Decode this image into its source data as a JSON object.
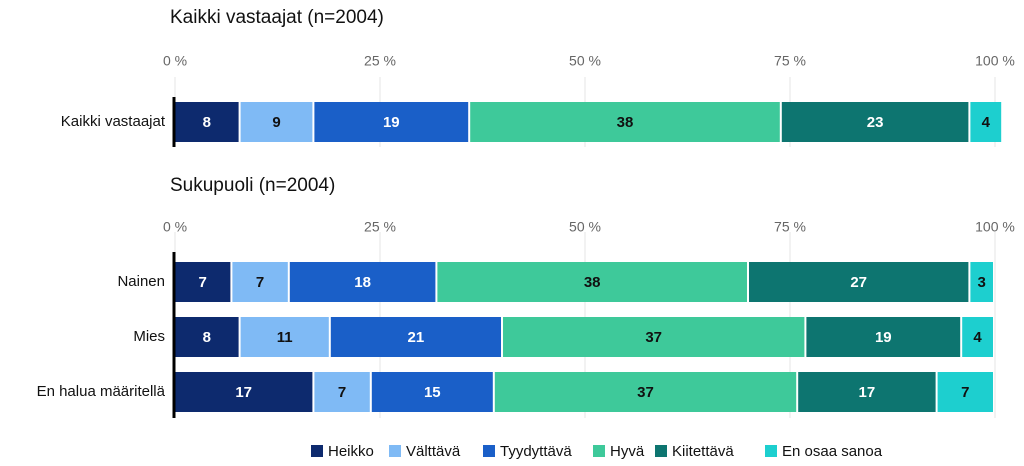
{
  "chart_data": [
    {
      "type": "bar",
      "title": "Kaikki vastaajat (n=2004)",
      "categories": [
        "Kaikki vastaajat"
      ],
      "series": [
        {
          "color": "#0d2a6e",
          "values": [
            8
          ]
        },
        {
          "color": "#7fbaf5",
          "values": [
            9
          ]
        },
        {
          "color": "#1a5fc8",
          "values": [
            19
          ]
        },
        {
          "color": "#3ec99a",
          "values": [
            38
          ]
        },
        {
          "color": "#0d7570",
          "values": [
            23
          ]
        },
        {
          "color": "#1dcfcf",
          "values": [
            4
          ]
        }
      ],
      "xlim": [
        0,
        100
      ],
      "xticks": [
        {
          "value": 0,
          "label": "0 %"
        },
        {
          "value": 25,
          "label": "25 %"
        },
        {
          "value": 50,
          "label": "50 %"
        },
        {
          "value": 75,
          "label": "75 %"
        },
        {
          "value": 100,
          "label": "100 %"
        }
      ],
      "grid": true
    },
    {
      "type": "bar",
      "title": "Sukupuoli (n=2004)",
      "categories": [
        "Nainen",
        "Mies",
        "En halua määritellä"
      ],
      "series": [
        {
          "name": "Heikko",
          "color": "#0d2a6e",
          "values": [
            7,
            8,
            17
          ]
        },
        {
          "name": "Välttävä",
          "color": "#7fbaf5",
          "values": [
            7,
            11,
            7
          ]
        },
        {
          "name": "Tyydyttävä",
          "color": "#1a5fc8",
          "values": [
            18,
            21,
            15
          ]
        },
        {
          "name": "Hyvä",
          "color": "#3ec99a",
          "values": [
            38,
            37,
            37
          ]
        },
        {
          "name": "Kiitettävä",
          "color": "#0d7570",
          "values": [
            27,
            19,
            17
          ]
        },
        {
          "name": "En osaa sanoa",
          "color": "#1dcfcf",
          "values": [
            3,
            4,
            7
          ]
        }
      ],
      "xlim": [
        0,
        100
      ],
      "xticks": [
        {
          "value": 0,
          "label": "0 %"
        },
        {
          "value": 25,
          "label": "25 %"
        },
        {
          "value": 50,
          "label": "50 %"
        },
        {
          "value": 75,
          "label": "75 %"
        },
        {
          "value": 100,
          "label": "100 %"
        }
      ],
      "grid": true,
      "legend": "bottom"
    }
  ]
}
